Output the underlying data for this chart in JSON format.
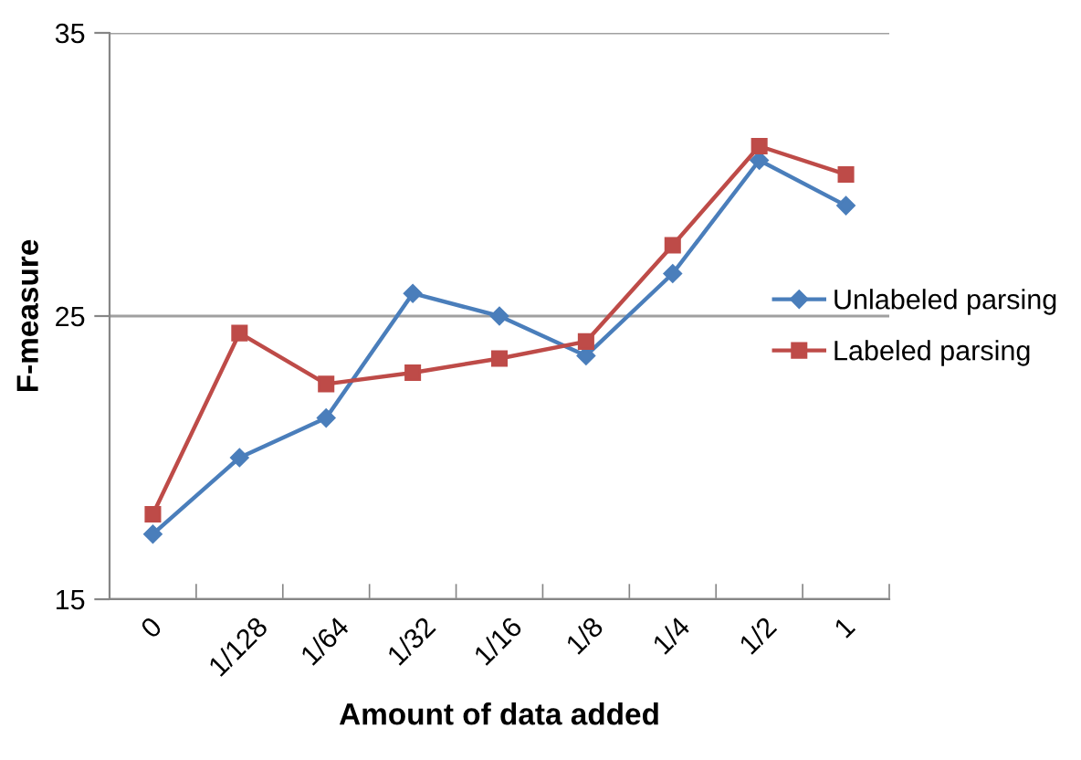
{
  "chart_data": {
    "type": "line",
    "xlabel": "Amount of data added",
    "ylabel": "F-measure",
    "categories": [
      "0",
      "1/128",
      "1/64",
      "1/32",
      "1/16",
      "1/8",
      "1/4",
      "1/2",
      "1"
    ],
    "series": [
      {
        "name": "Unlabeled parsing",
        "color": "#4a7ebb",
        "marker": "diamond",
        "values": [
          17.3,
          20.0,
          21.4,
          25.8,
          25.0,
          23.6,
          26.5,
          30.5,
          28.9
        ]
      },
      {
        "name": "Labeled parsing",
        "color": "#be4b48",
        "marker": "square",
        "values": [
          18.0,
          24.4,
          22.6,
          23.0,
          23.5,
          24.1,
          27.5,
          31.0,
          30.0
        ]
      }
    ],
    "ylim": [
      15,
      35
    ],
    "yticks": [
      15,
      25,
      35
    ],
    "grid": "y",
    "legend": "right",
    "line_style": "solid"
  }
}
